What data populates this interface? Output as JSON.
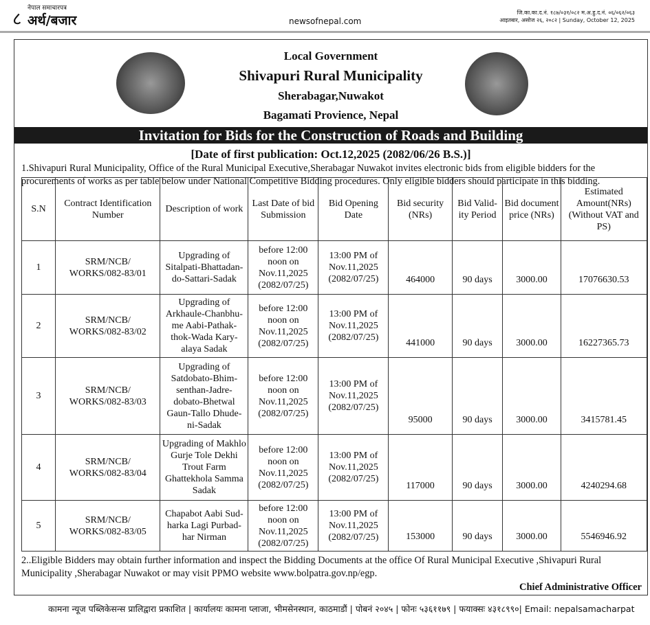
{
  "masthead": {
    "page_number": "८",
    "paper_small": "नेपाल समाचारपत्र",
    "paper_name": "अर्थ/बजार",
    "site": "newsofnepal.com",
    "reg_line": "जि.का.का.द.नं. १८७/०३१/०८२ म.अ.हु.द.नं. ०६/०६२/०६३",
    "date_line": "आइतबार, असोज २६, २०८२ | Sunday, October 12, 2025"
  },
  "notice": {
    "line1": "Local Government",
    "line2": "Shivapuri Rural Municipality",
    "line3": "Sherabagar,Nuwakot",
    "line4": "Bagamati Provience, Nepal",
    "title": "Invitation for Bids for the Construction of Roads and Building",
    "pub_date": "[Date of first publication: Oct.12,2025 (2082/06/26 B.S.)]",
    "para1": "1.Shivapuri Rural Municipality, Office of the Rural Municipal Executive,Sherabagar Nuwakot invites electronic bids from eligible bidders for the procurements of works as per table below under National Competitive Bidding procedures. Only eligible bidders should participate in this bidding.",
    "headers": [
      "S.N",
      "Contract Identification Number",
      "Description of work",
      "Last Date of bid Submission",
      "Bid Opening Date",
      "Bid security (NRs)",
      "Bid Valid-ity Period",
      "Bid document price (NRs)",
      "Estimated Amount(NRs) (Without VAT and PS)"
    ],
    "rows": [
      [
        "1",
        "SRM/NCB/ WORKS/082-83/01",
        "Upgrading of Sitalpati-Bhattadan-do-Sattari-Sadak",
        "before 12:00 noon on Nov.11,2025 (2082/07/25)",
        "13:00 PM of Nov.11,2025 (2082/07/25)",
        "464000",
        "90 days",
        "3000.00",
        "17076630.53"
      ],
      [
        "2",
        "SRM/NCB/ WORKS/082-83/02",
        "Upgrading of Arkhaule-Chanbhu-me Aabi-Pathak-thok-Wada Kary-alaya Sadak",
        "before 12:00 noon on Nov.11,2025 (2082/07/25)",
        "13:00 PM of Nov.11,2025 (2082/07/25)",
        "441000",
        "90 days",
        "3000.00",
        "16227365.73"
      ],
      [
        "3",
        "SRM/NCB/ WORKS/082-83/03",
        "Upgrading of Satdobato-Bhim-senthan-Jadre-dobato-Bhetwal Gaun-Tallo Dhude-ni-Sadak",
        "before 12:00 noon on Nov.11,2025 (2082/07/25)",
        "13:00 PM of Nov.11,2025 (2082/07/25)",
        "95000",
        "90 days",
        "3000.00",
        "3415781.45"
      ],
      [
        "4",
        "SRM/NCB/ WORKS/082-83/04",
        "Upgrading of Makhlo Gurje Tole Dekhi Trout Farm Ghattekhola Samma Sadak",
        "before 12:00 noon on Nov.11,2025 (2082/07/25)",
        "13:00 PM of Nov.11,2025 (2082/07/25)",
        "117000",
        "90 days",
        "3000.00",
        "4240294.68"
      ],
      [
        "5",
        "SRM/NCB/ WORKS/082-83/05",
        "Chapabot Aabi Sud-harka Lagi Purbad-har Nirman",
        "before 12:00 noon on Nov.11,2025 (2082/07/25)",
        "13:00 PM of Nov.11,2025 (2082/07/25)",
        "153000",
        "90 days",
        "3000.00",
        "5546946.92"
      ]
    ],
    "para2": "2..Eligible Bidders may obtain further information and inspect the Bidding Documents at the office Of Rural Municipal Executive ,Shivapuri Rural Municipality ,Sherabagar Nuwakot or may visit PPMO website ",
    "link": "www.bolpatra.gov.np/egp",
    "para2_end": ".",
    "signatory": "Chief Administrative Officer"
  },
  "footer": "कामना न्यूज पब्लिकेसन्स प्रालिद्वारा प्रकाशित | कार्यालयः कामना प्लाजा, भीमसेनस्थान, काठमाडौं | पोबनं २०४५ | फोनः ५३६११७९ | फयाक्सः ४३१८९९०| Email: nepalsamacharpat"
}
